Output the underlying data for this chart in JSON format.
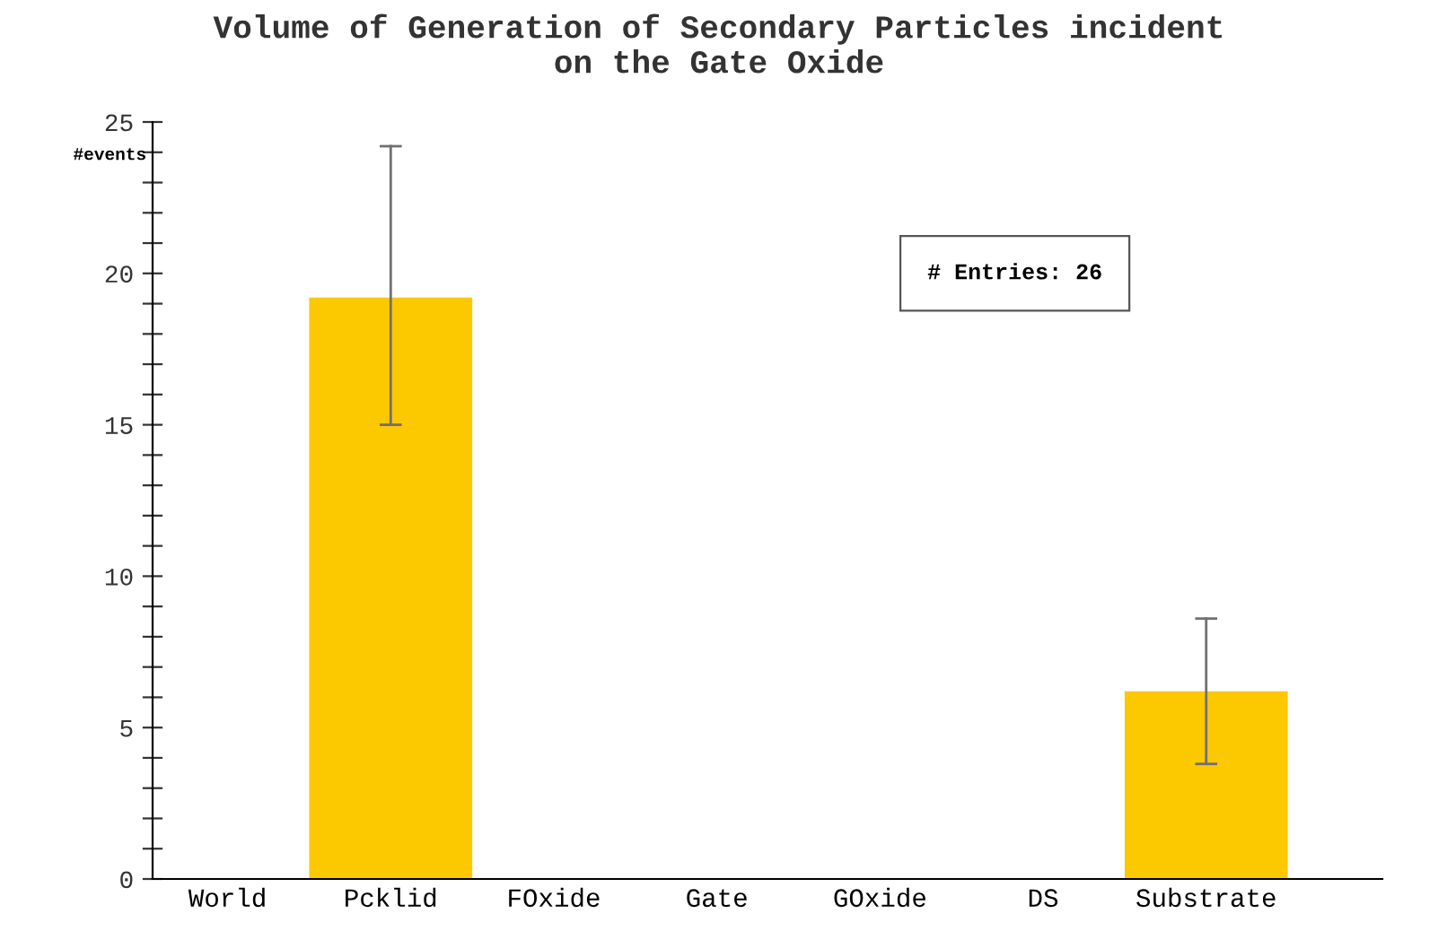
{
  "chart_data": {
    "type": "bar",
    "title": "Volume of Generation of Secondary Particles incident\non the Gate Oxide",
    "ylabel": "#events",
    "categories": [
      "World",
      "Pcklid",
      "FOxide",
      "Gate",
      "GOxide",
      "DS",
      "Substrate"
    ],
    "series": [
      {
        "color": "#fcc800",
        "values": [
          0,
          19.2,
          0,
          0,
          0,
          0,
          6.2
        ],
        "errors": [
          null,
          [
            15.0,
            24.2
          ],
          null,
          null,
          null,
          null,
          [
            3.8,
            8.6
          ]
        ]
      }
    ],
    "ylim": [
      0,
      25
    ],
    "yticks": [
      0,
      {
        "value": 1,
        "label": null
      },
      {
        "value": 2,
        "label": null
      },
      {
        "value": 3,
        "label": null
      },
      {
        "value": 4,
        "label": null
      },
      5,
      {
        "value": 6,
        "label": null
      },
      {
        "value": 7,
        "label": null
      },
      {
        "value": 8,
        "label": null
      },
      {
        "value": 9,
        "label": null
      },
      10,
      {
        "value": 11,
        "label": null
      },
      {
        "value": 12,
        "label": null
      },
      {
        "value": 13,
        "label": null
      },
      {
        "value": 14,
        "label": null
      },
      15,
      {
        "value": 16,
        "label": null
      },
      {
        "value": 17,
        "label": null
      },
      {
        "value": 18,
        "label": null
      },
      {
        "value": 19,
        "label": null
      },
      20,
      {
        "value": 21,
        "label": null
      },
      {
        "value": 22,
        "label": null
      },
      {
        "value": 23,
        "label": null
      },
      {
        "value": 24,
        "label": null
      },
      25
    ],
    "annotations": [
      "# Entries: 26"
    ],
    "grid": false,
    "legend": false
  }
}
